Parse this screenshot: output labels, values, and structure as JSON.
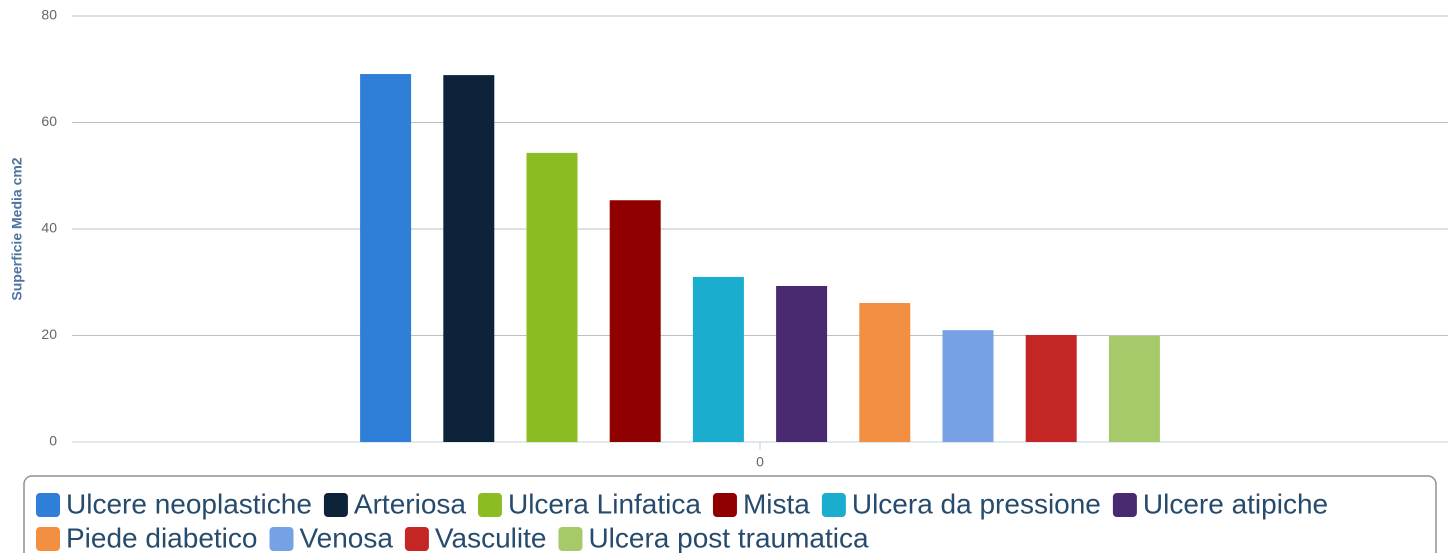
{
  "chart_data": {
    "type": "bar",
    "y_axis_label": "Superficie Media cm2",
    "categories": [
      "0"
    ],
    "series": [
      {
        "name": "Ulcere neoplastiche",
        "color": "#2f7ed8",
        "values": [
          69.1
        ]
      },
      {
        "name": "Arteriosa",
        "color": "#0d233a",
        "values": [
          68.9
        ]
      },
      {
        "name": "Ulcera Linfatica",
        "color": "#8bbc21",
        "values": [
          54.3
        ]
      },
      {
        "name": "Mista",
        "color": "#910000",
        "values": [
          45.4
        ]
      },
      {
        "name": "Ulcera da pressione",
        "color": "#1aadce",
        "values": [
          31.0
        ]
      },
      {
        "name": "Ulcere atipiche",
        "color": "#492970",
        "values": [
          29.3
        ]
      },
      {
        "name": "Piede diabetico",
        "color": "#f28f43",
        "values": [
          26.1
        ]
      },
      {
        "name": "Venosa",
        "color": "#77a1e5",
        "values": [
          21.0
        ]
      },
      {
        "name": "Vasculite",
        "color": "#c42525",
        "values": [
          20.1
        ]
      },
      {
        "name": "Ulcera post traumatica",
        "color": "#a6c96a",
        "values": [
          19.9
        ]
      }
    ],
    "ylim": [
      0,
      80
    ],
    "yticks": [
      0,
      20,
      40,
      60,
      80
    ],
    "grid": true,
    "legend": "bottom"
  }
}
